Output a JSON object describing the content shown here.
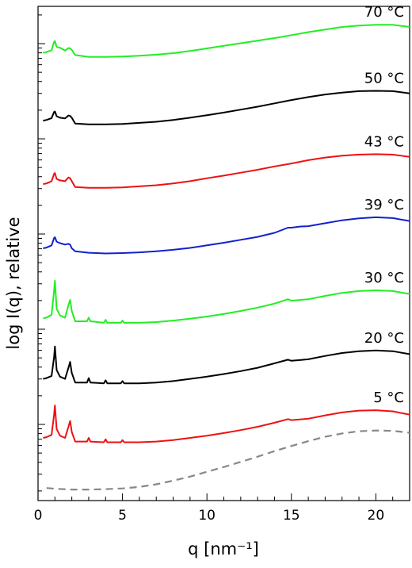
{
  "chart_data": {
    "type": "line",
    "xlabel": "q [nm⁻¹]",
    "ylabel": "log I(q), relative",
    "xlim": [
      0,
      22
    ],
    "x_ticks": [
      0,
      5,
      10,
      15,
      20
    ],
    "y_tick_labels": "none",
    "grid": false,
    "legend": "inline labels at right end of curves",
    "series": [
      {
        "name": "70 °C",
        "color": "#22ee22",
        "dashed": false,
        "x": [
          0.3,
          0.5,
          0.8,
          0.95,
          1.0,
          1.1,
          1.3,
          1.6,
          1.8,
          1.9,
          2.0,
          2.2,
          3.0,
          4.0,
          5.0,
          6.0,
          7.0,
          8.0,
          9.0,
          10.0,
          11.0,
          12.0,
          13.0,
          14.0,
          15.0,
          16.0,
          17.0,
          18.0,
          19.0,
          20.0,
          21.0,
          22.0
        ],
        "y": [
          0.92,
          0.93,
          0.955,
          1.07,
          1.08,
          1.0,
          0.99,
          0.95,
          0.985,
          0.98,
          0.96,
          0.89,
          0.865,
          0.865,
          0.87,
          0.88,
          0.895,
          0.915,
          0.945,
          0.98,
          1.015,
          1.05,
          1.085,
          1.12,
          1.16,
          1.2,
          1.235,
          1.27,
          1.29,
          1.3,
          1.3,
          1.27
        ]
      },
      {
        "name": "50 °C",
        "color": "#000000",
        "dashed": false,
        "x": [
          0.3,
          0.5,
          0.8,
          0.95,
          1.0,
          1.1,
          1.3,
          1.6,
          1.8,
          1.9,
          2.0,
          2.2,
          3.0,
          4.0,
          5.0,
          6.0,
          7.0,
          8.0,
          9.0,
          10.0,
          11.0,
          12.0,
          13.0,
          14.0,
          15.0,
          16.0,
          17.0,
          18.0,
          19.0,
          20.0,
          21.0,
          22.0
        ],
        "y": [
          0.0,
          0.01,
          0.035,
          0.12,
          0.125,
          0.06,
          0.04,
          0.03,
          0.07,
          0.065,
          0.04,
          -0.04,
          -0.05,
          -0.05,
          -0.045,
          -0.03,
          -0.015,
          0.01,
          0.04,
          0.075,
          0.11,
          0.15,
          0.19,
          0.235,
          0.28,
          0.32,
          0.355,
          0.38,
          0.4,
          0.405,
          0.4,
          0.37
        ]
      },
      {
        "name": "43 °C",
        "color": "#ee1111",
        "dashed": false,
        "x": [
          0.3,
          0.5,
          0.8,
          0.95,
          1.0,
          1.1,
          1.3,
          1.6,
          1.8,
          1.9,
          2.0,
          2.2,
          3.0,
          4.0,
          5.0,
          6.0,
          7.0,
          8.0,
          9.0,
          10.0,
          11.0,
          12.0,
          13.0,
          14.0,
          15.0,
          16.0,
          17.0,
          18.0,
          19.0,
          20.0,
          21.0,
          22.0
        ],
        "y": [
          -0.86,
          -0.85,
          -0.82,
          -0.72,
          -0.71,
          -0.79,
          -0.81,
          -0.82,
          -0.77,
          -0.78,
          -0.82,
          -0.9,
          -0.91,
          -0.91,
          -0.905,
          -0.89,
          -0.875,
          -0.85,
          -0.82,
          -0.78,
          -0.745,
          -0.705,
          -0.665,
          -0.62,
          -0.58,
          -0.535,
          -0.5,
          -0.475,
          -0.46,
          -0.455,
          -0.46,
          -0.49
        ]
      },
      {
        "name": "39 °C",
        "color": "#1122cc",
        "dashed": false,
        "x": [
          0.3,
          0.5,
          0.8,
          0.95,
          1.0,
          1.1,
          1.3,
          1.6,
          1.8,
          1.9,
          2.0,
          2.2,
          3.0,
          4.0,
          5.0,
          6.0,
          7.0,
          8.0,
          9.0,
          10.0,
          11.0,
          12.0,
          13.0,
          14.0,
          14.8,
          15.0,
          15.5,
          16.0,
          17.0,
          18.0,
          19.0,
          20.0,
          21.0,
          22.0
        ],
        "y": [
          -1.73,
          -1.72,
          -1.69,
          -1.59,
          -1.58,
          -1.64,
          -1.66,
          -1.68,
          -1.67,
          -1.68,
          -1.73,
          -1.77,
          -1.79,
          -1.8,
          -1.795,
          -1.785,
          -1.77,
          -1.75,
          -1.725,
          -1.69,
          -1.655,
          -1.615,
          -1.575,
          -1.52,
          -1.45,
          -1.45,
          -1.435,
          -1.43,
          -1.39,
          -1.35,
          -1.325,
          -1.31,
          -1.32,
          -1.36
        ]
      },
      {
        "name": "30 °C",
        "color": "#22ee22",
        "dashed": false,
        "x": [
          0.3,
          0.5,
          0.8,
          0.95,
          1.0,
          1.1,
          1.3,
          1.6,
          1.8,
          1.9,
          2.0,
          2.2,
          2.9,
          3.0,
          3.1,
          3.9,
          4.0,
          4.1,
          4.9,
          5.0,
          5.1,
          6.0,
          7.0,
          8.0,
          9.0,
          10.0,
          11.0,
          12.0,
          13.0,
          14.0,
          14.8,
          15.0,
          15.5,
          16.0,
          17.0,
          18.0,
          19.0,
          20.0,
          21.0,
          22.0
        ],
        "y": [
          -2.68,
          -2.67,
          -2.63,
          -2.3,
          -2.17,
          -2.55,
          -2.64,
          -2.67,
          -2.5,
          -2.43,
          -2.58,
          -2.72,
          -2.72,
          -2.67,
          -2.72,
          -2.74,
          -2.7,
          -2.74,
          -2.74,
          -2.71,
          -2.74,
          -2.74,
          -2.73,
          -2.71,
          -2.685,
          -2.655,
          -2.62,
          -2.58,
          -2.535,
          -2.48,
          -2.42,
          -2.44,
          -2.43,
          -2.42,
          -2.375,
          -2.335,
          -2.31,
          -2.3,
          -2.31,
          -2.35
        ]
      },
      {
        "name": "20 °C",
        "color": "#000000",
        "dashed": false,
        "x": [
          0.3,
          0.5,
          0.8,
          0.95,
          1.0,
          1.1,
          1.3,
          1.6,
          1.8,
          1.9,
          2.0,
          2.2,
          2.9,
          3.0,
          3.1,
          3.9,
          4.0,
          4.1,
          4.9,
          5.0,
          5.1,
          6.0,
          7.0,
          8.0,
          9.0,
          10.0,
          11.0,
          12.0,
          13.0,
          14.0,
          14.8,
          15.0,
          15.5,
          16.0,
          17.0,
          18.0,
          19.0,
          20.0,
          21.0,
          22.0
        ],
        "y": [
          -3.5,
          -3.49,
          -3.46,
          -3.2,
          -3.06,
          -3.38,
          -3.47,
          -3.5,
          -3.35,
          -3.27,
          -3.42,
          -3.55,
          -3.55,
          -3.49,
          -3.55,
          -3.56,
          -3.52,
          -3.56,
          -3.56,
          -3.53,
          -3.56,
          -3.56,
          -3.55,
          -3.53,
          -3.5,
          -3.47,
          -3.435,
          -3.395,
          -3.35,
          -3.29,
          -3.24,
          -3.255,
          -3.245,
          -3.235,
          -3.19,
          -3.15,
          -3.125,
          -3.115,
          -3.125,
          -3.165
        ]
      },
      {
        "name": "5 °C",
        "color": "#ee1111",
        "dashed": false,
        "x": [
          0.3,
          0.5,
          0.8,
          0.95,
          1.0,
          1.1,
          1.3,
          1.6,
          1.8,
          1.9,
          2.0,
          2.2,
          2.9,
          3.0,
          3.1,
          3.9,
          4.0,
          4.1,
          4.9,
          5.0,
          5.1,
          6.0,
          7.0,
          8.0,
          9.0,
          10.0,
          11.0,
          12.0,
          13.0,
          14.0,
          14.8,
          15.0,
          15.5,
          16.0,
          17.0,
          18.0,
          19.0,
          20.0,
          21.0,
          22.0
        ],
        "y": [
          -4.3,
          -4.29,
          -4.26,
          -3.98,
          -3.86,
          -4.18,
          -4.27,
          -4.3,
          -4.15,
          -4.07,
          -4.22,
          -4.35,
          -4.35,
          -4.3,
          -4.35,
          -4.36,
          -4.32,
          -4.36,
          -4.36,
          -4.33,
          -4.36,
          -4.36,
          -4.35,
          -4.33,
          -4.3,
          -4.27,
          -4.235,
          -4.195,
          -4.15,
          -4.095,
          -4.045,
          -4.06,
          -4.05,
          -4.04,
          -3.995,
          -3.955,
          -3.93,
          -3.925,
          -3.94,
          -3.985
        ]
      },
      {
        "name": "",
        "color": "#888888",
        "dashed": true,
        "x": [
          0.5,
          1.0,
          2.0,
          3.0,
          4.0,
          5.0,
          6.0,
          7.0,
          8.0,
          9.0,
          10.0,
          11.0,
          12.0,
          13.0,
          14.0,
          15.0,
          16.0,
          17.0,
          18.0,
          19.0,
          20.0,
          21.0,
          22.0
        ],
        "y": [
          -4.98,
          -4.99,
          -5.0,
          -5.0,
          -4.995,
          -4.985,
          -4.965,
          -4.93,
          -4.88,
          -4.825,
          -4.76,
          -4.695,
          -4.625,
          -4.555,
          -4.48,
          -4.41,
          -4.345,
          -4.285,
          -4.24,
          -4.21,
          -4.2,
          -4.205,
          -4.23
        ]
      }
    ]
  }
}
